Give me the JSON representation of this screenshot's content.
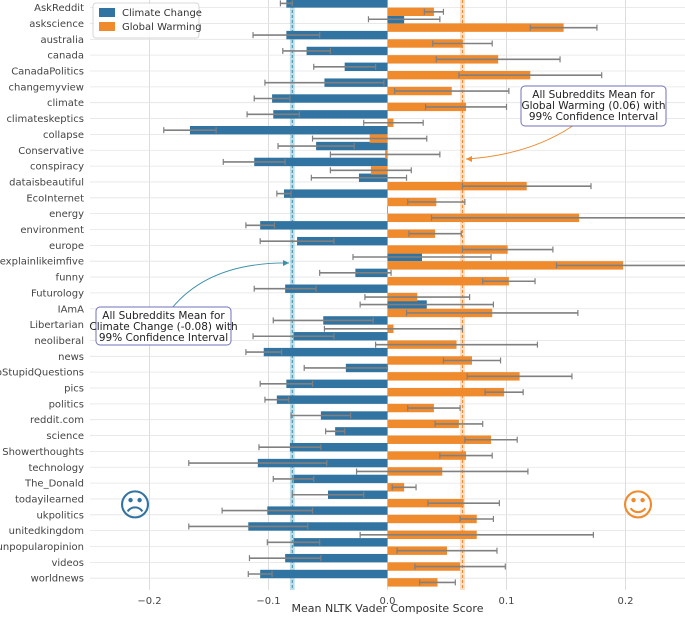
{
  "chart_data": {
    "type": "bar",
    "orientation": "horizontal",
    "xlabel": "Mean NLTK Vader Composite Score",
    "xlim": [
      -0.25,
      0.25
    ],
    "xticks": [
      -0.2,
      -0.1,
      0.0,
      0.1,
      0.2
    ],
    "xtick_labels": [
      "−0.2",
      "−0.1",
      "0.0",
      "0.1",
      "0.2"
    ],
    "grid": true,
    "legend_position": "top-left",
    "colors": {
      "climate": "#3274a1",
      "global": "#ef8a2d",
      "errorbar": "#808080"
    },
    "categories": [
      "AskReddit",
      "askscience",
      "australia",
      "canada",
      "CanadaPolitics",
      "changemyview",
      "climate",
      "climateskeptics",
      "collapse",
      "Conservative",
      "conspiracy",
      "dataisbeautiful",
      "EcoInternet",
      "energy",
      "environment",
      "europe",
      "explainlikeimfive",
      "funny",
      "Futurology",
      "IAmA",
      "Libertarian",
      "neoliberal",
      "news",
      "NoStupidQuestions",
      "pics",
      "politics",
      "reddit.com",
      "science",
      "Showerthoughts",
      "technology",
      "The_Donald",
      "todayilearned",
      "ukpolitics",
      "unitedkingdom",
      "unpopularopinion",
      "videos",
      "worldnews"
    ],
    "series": [
      {
        "name": "Climate Change",
        "values": [
          -0.085,
          0.014,
          -0.085,
          -0.068,
          -0.036,
          -0.053,
          -0.097,
          -0.096,
          -0.166,
          -0.06,
          -0.112,
          -0.024,
          -0.087,
          0.0,
          -0.107,
          -0.076,
          0.029,
          -0.027,
          -0.086,
          0.033,
          -0.054,
          -0.079,
          -0.104,
          -0.035,
          -0.085,
          -0.093,
          -0.056,
          -0.044,
          -0.082,
          -0.109,
          -0.079,
          -0.05,
          -0.101,
          -0.117,
          -0.079,
          -0.086,
          -0.107
        ],
        "err": [
          0.005,
          0.03,
          0.028,
          0.02,
          0.026,
          0.05,
          0.015,
          0.022,
          0.022,
          0.032,
          0.026,
          0.04,
          0.006,
          0.0,
          0.012,
          0.031,
          0.058,
          0.03,
          0.026,
          0.056,
          0.042,
          0.034,
          0.015,
          0.035,
          0.022,
          0.01,
          0.025,
          0.008,
          0.026,
          0.058,
          0.017,
          0.03,
          0.038,
          0.05,
          0.022,
          0.03,
          0.01
        ]
      },
      {
        "name": "Global Warming",
        "values": [
          0.039,
          0.148,
          0.063,
          0.093,
          0.12,
          0.054,
          0.066,
          0.005,
          -0.015,
          -0.002,
          -0.014,
          0.117,
          0.041,
          0.161,
          0.04,
          0.101,
          0.198,
          0.102,
          0.025,
          0.088,
          0.005,
          0.058,
          0.071,
          0.111,
          0.098,
          0.039,
          0.06,
          0.087,
          0.066,
          0.046,
          0.014,
          0.064,
          0.075,
          0.075,
          0.05,
          0.061,
          0.042
        ],
        "err": [
          0.008,
          0.028,
          0.025,
          0.052,
          0.06,
          0.048,
          0.034,
          0.025,
          0.048,
          0.046,
          0.034,
          0.054,
          0.024,
          0.124,
          0.022,
          0.038,
          0.056,
          0.022,
          0.044,
          0.072,
          0.058,
          0.068,
          0.024,
          0.044,
          0.016,
          0.022,
          0.02,
          0.022,
          0.022,
          0.072,
          0.01,
          0.03,
          0.014,
          0.098,
          0.042,
          0.038,
          0.015
        ]
      }
    ],
    "mean_lines": [
      {
        "series": "Climate Change",
        "value": -0.08,
        "ci": 0.002
      },
      {
        "series": "Global Warming",
        "value": 0.063,
        "ci": 0.002
      }
    ],
    "annotations": [
      {
        "id": "gw",
        "lines": [
          "All Subreddits Mean for",
          "Global Warming (0.06) with",
          "99% Confidence Interval"
        ],
        "target_x": 0.063
      },
      {
        "id": "cc",
        "lines": [
          "All Subreddits Mean for",
          "Climate Change (-0.08) with",
          "99% Confidence Interval"
        ],
        "target_x": -0.08
      }
    ],
    "emoji": {
      "sad": "☹",
      "happy": "☺"
    }
  }
}
